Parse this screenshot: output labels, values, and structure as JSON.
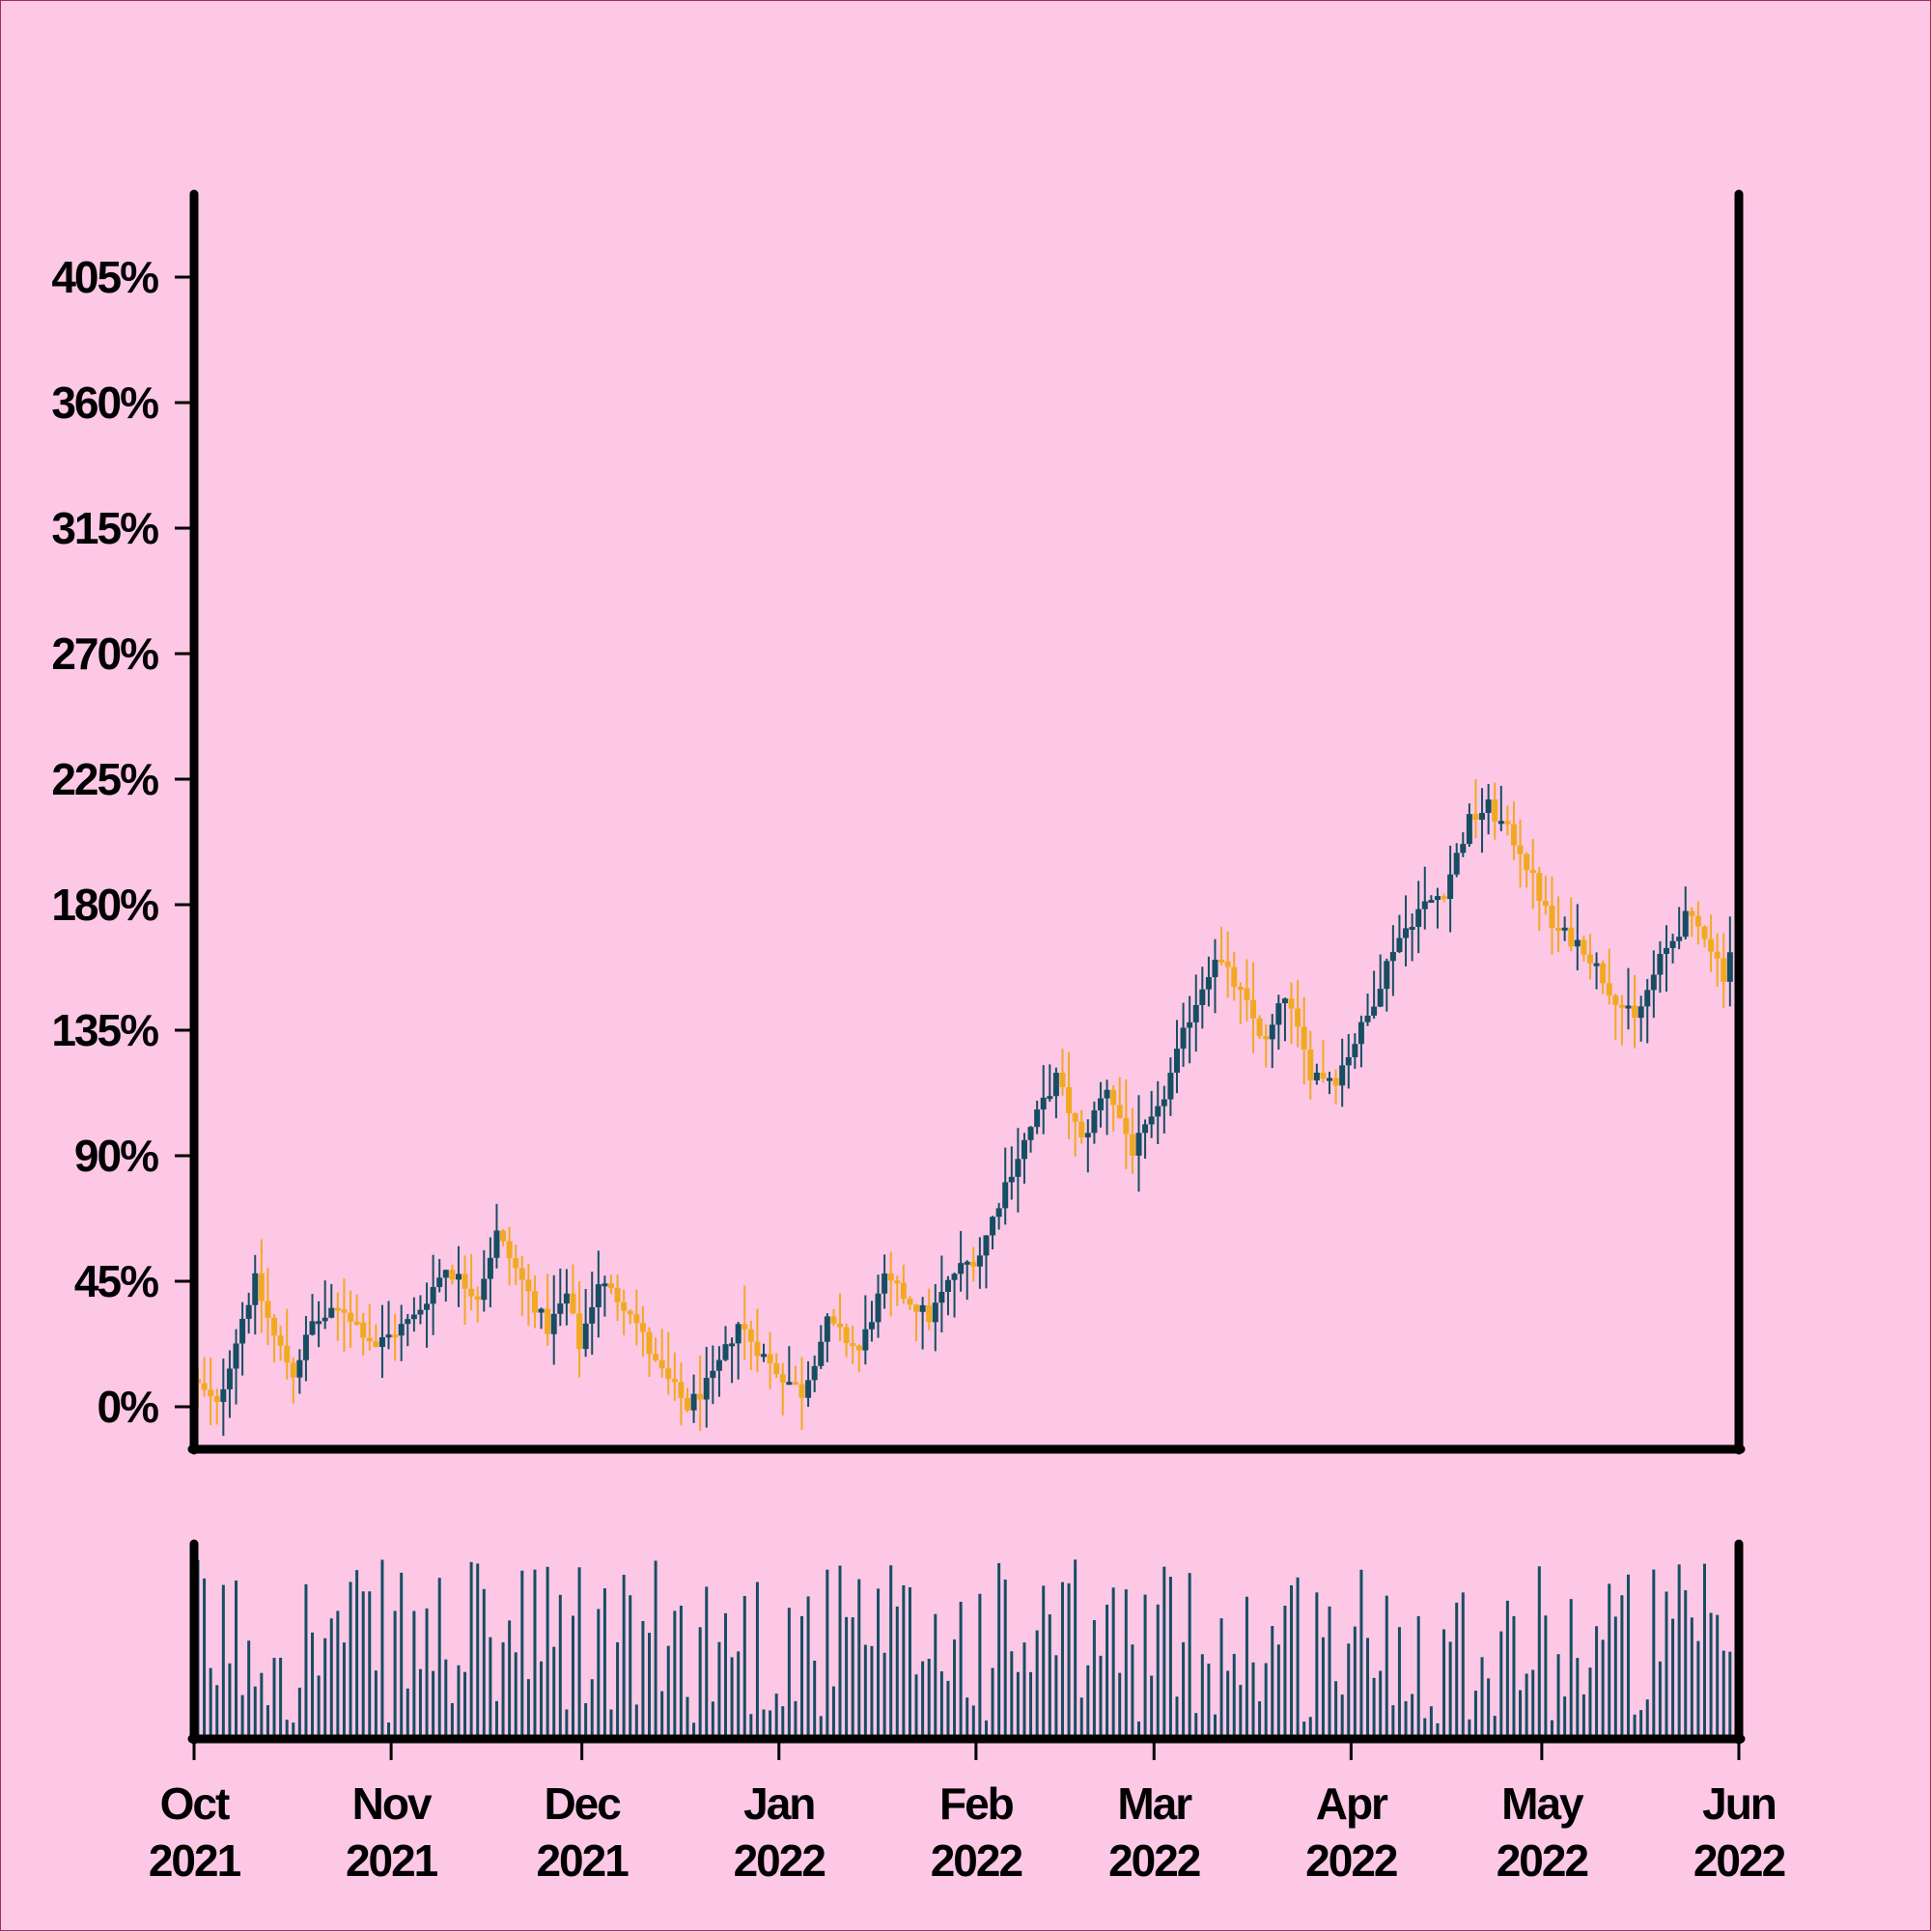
{
  "chart_data": {
    "type": "candlestick",
    "title": "",
    "xlabel": "",
    "ylabel": "",
    "x_range": [
      "2021-10-01",
      "2022-06-01"
    ],
    "ylim": [
      -10,
      455
    ],
    "y_ticks": [
      {
        "value": 0,
        "label": "0%"
      },
      {
        "value": 45,
        "label": "45%"
      },
      {
        "value": 90,
        "label": "90%"
      },
      {
        "value": 135,
        "label": "135%"
      },
      {
        "value": 180,
        "label": "180%"
      },
      {
        "value": 225,
        "label": "225%"
      },
      {
        "value": 270,
        "label": "270%"
      },
      {
        "value": 315,
        "label": "315%"
      },
      {
        "value": 360,
        "label": "360%"
      },
      {
        "value": 405,
        "label": "405%"
      }
    ],
    "x_ticks": [
      {
        "date": "2021-10-01",
        "month": "Oct",
        "year": "2021"
      },
      {
        "date": "2021-11-01",
        "month": "Nov",
        "year": "2021"
      },
      {
        "date": "2021-12-01",
        "month": "Dec",
        "year": "2021"
      },
      {
        "date": "2022-01-01",
        "month": "Jan",
        "year": "2022"
      },
      {
        "date": "2022-02-01",
        "month": "Feb",
        "year": "2022"
      },
      {
        "date": "2022-03-01",
        "month": "Mar",
        "year": "2022"
      },
      {
        "date": "2022-04-01",
        "month": "Apr",
        "year": "2022"
      },
      {
        "date": "2022-05-01",
        "month": "May",
        "year": "2022"
      },
      {
        "date": "2022-06-01",
        "month": "Jun",
        "year": "2022"
      }
    ],
    "trend_points": [
      [
        "2021-10-01",
        10
      ],
      [
        "2021-10-05",
        0
      ],
      [
        "2021-10-09",
        32
      ],
      [
        "2021-10-11",
        45
      ],
      [
        "2021-10-14",
        25
      ],
      [
        "2021-10-17",
        12
      ],
      [
        "2021-10-20",
        30
      ],
      [
        "2021-10-25",
        35
      ],
      [
        "2021-10-30",
        22
      ],
      [
        "2021-11-05",
        32
      ],
      [
        "2021-11-10",
        50
      ],
      [
        "2021-11-15",
        40
      ],
      [
        "2021-11-18",
        62
      ],
      [
        "2021-11-22",
        45
      ],
      [
        "2021-11-26",
        28
      ],
      [
        "2021-11-29",
        40
      ],
      [
        "2021-12-01",
        22
      ],
      [
        "2021-12-04",
        45
      ],
      [
        "2021-12-09",
        35
      ],
      [
        "2021-12-13",
        15
      ],
      [
        "2021-12-18",
        0
      ],
      [
        "2021-12-22",
        10
      ],
      [
        "2021-12-26",
        30
      ],
      [
        "2021-12-31",
        15
      ],
      [
        "2022-01-05",
        5
      ],
      [
        "2022-01-09",
        30
      ],
      [
        "2022-01-14",
        20
      ],
      [
        "2022-01-18",
        45
      ],
      [
        "2022-01-21",
        40
      ],
      [
        "2022-01-25",
        32
      ],
      [
        "2022-01-29",
        48
      ],
      [
        "2022-02-02",
        55
      ],
      [
        "2022-02-06",
        80
      ],
      [
        "2022-02-10",
        100
      ],
      [
        "2022-02-14",
        118
      ],
      [
        "2022-02-18",
        95
      ],
      [
        "2022-02-22",
        115
      ],
      [
        "2022-02-26",
        92
      ],
      [
        "2022-03-02",
        105
      ],
      [
        "2022-03-07",
        140
      ],
      [
        "2022-03-11",
        162
      ],
      [
        "2022-03-15",
        148
      ],
      [
        "2022-03-19",
        130
      ],
      [
        "2022-03-22",
        148
      ],
      [
        "2022-03-26",
        120
      ],
      [
        "2022-03-30",
        118
      ],
      [
        "2022-04-04",
        140
      ],
      [
        "2022-04-08",
        165
      ],
      [
        "2022-04-12",
        178
      ],
      [
        "2022-04-16",
        185
      ],
      [
        "2022-04-20",
        210
      ],
      [
        "2022-04-23",
        215
      ],
      [
        "2022-04-28",
        200
      ],
      [
        "2022-05-03",
        172
      ],
      [
        "2022-05-08",
        165
      ],
      [
        "2022-05-12",
        150
      ],
      [
        "2022-05-16",
        138
      ],
      [
        "2022-05-20",
        160
      ],
      [
        "2022-05-24",
        175
      ],
      [
        "2022-05-27",
        170
      ],
      [
        "2022-05-30",
        155
      ],
      [
        "2022-06-01",
        172
      ]
    ],
    "up_color": "#164e63",
    "down_color": "#f2a922",
    "volume_color": "#164e63",
    "volume_bars": "one per trading day, unlabeled",
    "grid": false,
    "legend": "none"
  },
  "colors": {
    "background": "#fcc8e6",
    "axis": "#000000"
  }
}
